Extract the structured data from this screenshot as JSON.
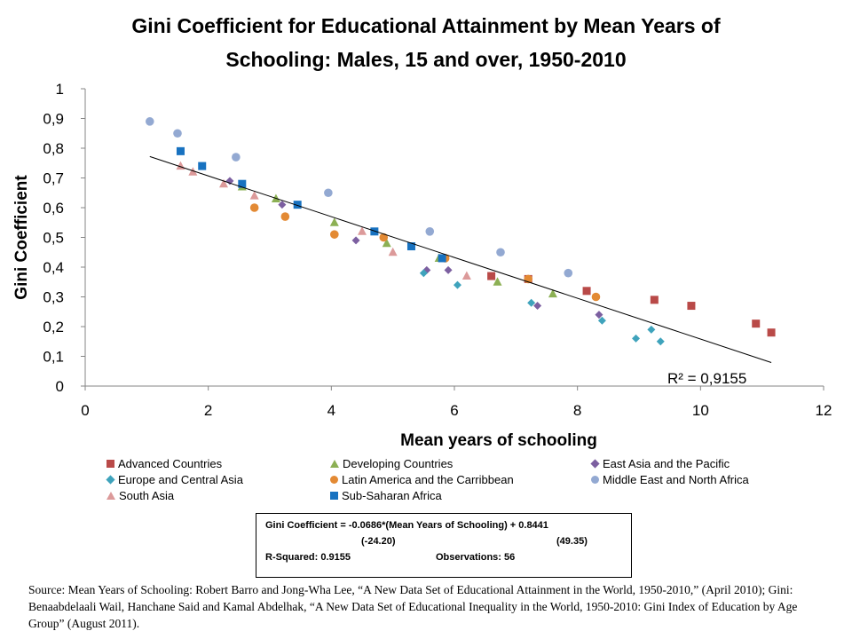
{
  "title_line1": "Gini Coefficient for Educational Attainment by Mean Years of",
  "title_line2": "Schooling: Males, 15 and over, 1950-2010",
  "chart_data": {
    "type": "scatter",
    "title": "Gini Coefficient for Educational Attainment by Mean Years of Schooling: Males, 15 and over, 1950-2010",
    "xlabel": "Mean years of schooling",
    "ylabel": "Gini Coefficient",
    "xlim": [
      0,
      12
    ],
    "ylim": [
      0,
      1
    ],
    "x_ticks": [
      "0",
      "2",
      "4",
      "6",
      "8",
      "10",
      "12"
    ],
    "y_ticks": [
      "0",
      "0,1",
      "0,2",
      "0,3",
      "0,4",
      "0,5",
      "0,6",
      "0,7",
      "0,8",
      "0,9",
      "1"
    ],
    "grid": false,
    "legend_position": "bottom",
    "r_squared_label": "R² = 0,9155",
    "trendline": {
      "slope": -0.0686,
      "intercept": 0.8441,
      "x_range": [
        1.05,
        11.15
      ]
    },
    "series": [
      {
        "name": "Advanced Countries",
        "marker": "square",
        "color": "#B94A48",
        "points": [
          [
            6.6,
            0.37
          ],
          [
            7.2,
            0.36
          ],
          [
            8.15,
            0.32
          ],
          [
            9.25,
            0.29
          ],
          [
            9.85,
            0.27
          ],
          [
            10.9,
            0.21
          ],
          [
            11.15,
            0.18
          ]
        ]
      },
      {
        "name": "Developing Countries",
        "marker": "triangle",
        "color": "#8CB054",
        "points": [
          [
            2.55,
            0.67
          ],
          [
            3.1,
            0.63
          ],
          [
            4.05,
            0.55
          ],
          [
            4.9,
            0.48
          ],
          [
            5.75,
            0.43
          ],
          [
            6.7,
            0.35
          ],
          [
            7.6,
            0.31
          ]
        ]
      },
      {
        "name": "East Asia and the Pacific",
        "marker": "diamond",
        "color": "#7C5FA0",
        "points": [
          [
            2.35,
            0.69
          ],
          [
            3.2,
            0.61
          ],
          [
            4.4,
            0.49
          ],
          [
            5.55,
            0.39
          ],
          [
            5.9,
            0.39
          ],
          [
            7.35,
            0.27
          ],
          [
            8.35,
            0.24
          ]
        ]
      },
      {
        "name": "Europe and Central Asia",
        "marker": "diamond",
        "color": "#3FA3BC",
        "points": [
          [
            5.5,
            0.38
          ],
          [
            6.05,
            0.34
          ],
          [
            7.25,
            0.28
          ],
          [
            8.4,
            0.22
          ],
          [
            8.95,
            0.16
          ],
          [
            9.2,
            0.19
          ],
          [
            9.35,
            0.15
          ]
        ]
      },
      {
        "name": "Latin America and the Carribbean",
        "marker": "circle",
        "color": "#E38A34",
        "points": [
          [
            2.75,
            0.6
          ],
          [
            3.25,
            0.57
          ],
          [
            4.05,
            0.51
          ],
          [
            4.85,
            0.5
          ],
          [
            5.85,
            0.43
          ],
          [
            7.2,
            0.36
          ],
          [
            8.3,
            0.3
          ]
        ]
      },
      {
        "name": "Middle East and North Africa",
        "marker": "circle",
        "color": "#93A9D2",
        "points": [
          [
            1.05,
            0.89
          ],
          [
            1.5,
            0.85
          ],
          [
            2.45,
            0.77
          ],
          [
            3.95,
            0.65
          ],
          [
            5.6,
            0.52
          ],
          [
            6.75,
            0.45
          ],
          [
            7.85,
            0.38
          ]
        ]
      },
      {
        "name": "South Asia",
        "marker": "triangle",
        "color": "#DC9A9A",
        "points": [
          [
            1.55,
            0.74
          ],
          [
            1.75,
            0.72
          ],
          [
            2.25,
            0.68
          ],
          [
            2.75,
            0.64
          ],
          [
            4.5,
            0.52
          ],
          [
            5.0,
            0.45
          ],
          [
            6.2,
            0.37
          ]
        ]
      },
      {
        "name": "Sub-Saharan Africa",
        "marker": "square",
        "color": "#1872C0",
        "points": [
          [
            1.55,
            0.79
          ],
          [
            1.9,
            0.74
          ],
          [
            2.55,
            0.68
          ],
          [
            3.45,
            0.61
          ],
          [
            4.7,
            0.52
          ],
          [
            5.3,
            0.47
          ],
          [
            5.8,
            0.43
          ]
        ]
      }
    ]
  },
  "equation_box": {
    "line1": "Gini Coefficient = -0.0686*(Mean Years of Schooling) + 0.8441",
    "t_left": "(-24.20)",
    "t_right": "(49.35)",
    "r_squared": "R-Squared: 0.9155",
    "observations": "Observations: 56"
  },
  "source_text": "Source: Mean Years of Schooling: Robert Barro and Jong-Wha Lee, “A New Data Set of Educational Attainment in the World, 1950-2010,” (April 2010); Gini: Benaabdelaali Wail, Hanchane Said and Kamal Abdelhak, “A New Data Set of Educational Inequality in the World, 1950-2010: Gini Index of Education by Age Group” (August 2011)."
}
